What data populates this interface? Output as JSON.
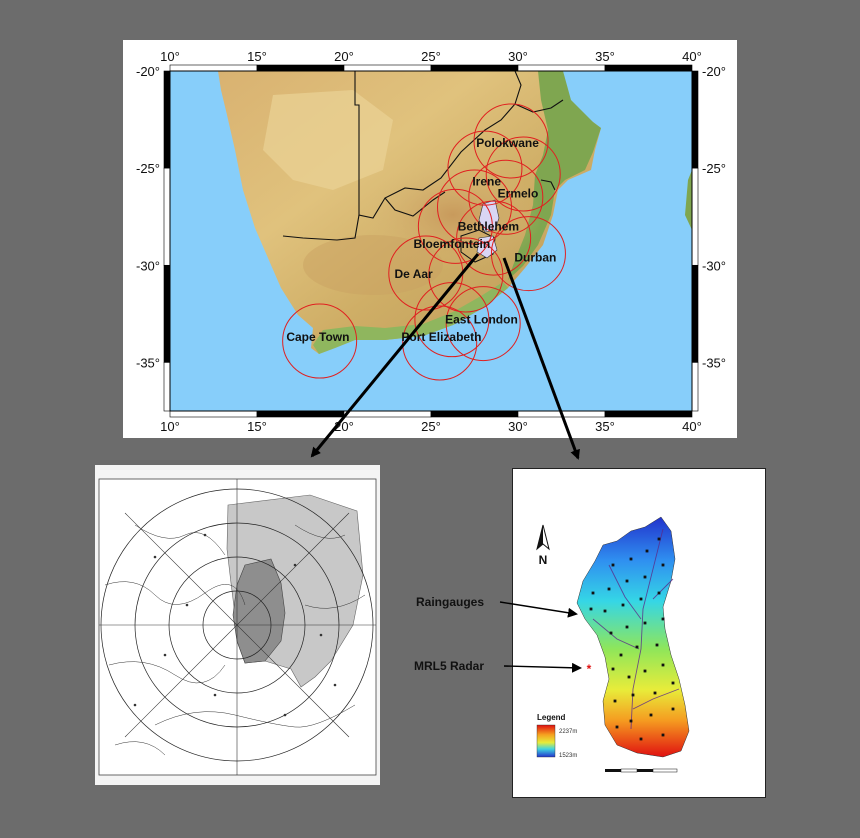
{
  "main_map": {
    "lon_ticks": [
      "10°",
      "15°",
      "20°",
      "25°",
      "30°",
      "35°",
      "40°"
    ],
    "lat_ticks": [
      "-20°",
      "-25°",
      "-30°",
      "-35°"
    ],
    "cities": [
      {
        "name": "Polokwane",
        "lon": 29.4,
        "lat": -23.9
      },
      {
        "name": "Irene",
        "lon": 28.2,
        "lat": -25.9
      },
      {
        "name": "Bloemfontein",
        "lon": 26.2,
        "lat": -29.1
      },
      {
        "name": "Ermelo",
        "lon": 30.0,
        "lat": -26.5
      },
      {
        "name": "Bethlehem",
        "lon": 28.3,
        "lat": -28.2
      },
      {
        "name": "De Aar",
        "lon": 24.0,
        "lat": -30.65
      },
      {
        "name": "Durban",
        "lon": 31.0,
        "lat": -29.8
      },
      {
        "name": "East London",
        "lon": 27.9,
        "lat": -33.0
      },
      {
        "name": "Cape Town",
        "lon": 18.5,
        "lat": -33.9
      },
      {
        "name": "Port Elizabeth",
        "lon": 25.6,
        "lat": -33.9
      }
    ],
    "radar_circles": [
      {
        "lon": 29.6,
        "lat": -23.6
      },
      {
        "lon": 28.1,
        "lat": -25.0
      },
      {
        "lon": 30.3,
        "lat": -25.3
      },
      {
        "lon": 29.3,
        "lat": -26.5
      },
      {
        "lon": 27.5,
        "lat": -27.0
      },
      {
        "lon": 26.4,
        "lat": -28.0
      },
      {
        "lon": 28.6,
        "lat": -28.6
      },
      {
        "lon": 30.6,
        "lat": -29.4
      },
      {
        "lon": 24.7,
        "lat": -30.4
      },
      {
        "lon": 27.0,
        "lat": -30.5
      },
      {
        "lon": 26.2,
        "lat": -32.8
      },
      {
        "lon": 28.0,
        "lat": -33.0
      },
      {
        "lon": 18.6,
        "lat": -33.9
      },
      {
        "lon": 25.5,
        "lat": -34.0
      }
    ]
  },
  "catchment": {
    "raingauges_label": "Raingauges",
    "radar_label": "MRL5 Radar",
    "north_label": "N",
    "legend_title": "Legend",
    "legend_high": "2237m",
    "legend_low": "1523m"
  },
  "colors": {
    "ocean": "#87cefa",
    "radar_ring": "#e02020",
    "arrow": "#000000"
  }
}
